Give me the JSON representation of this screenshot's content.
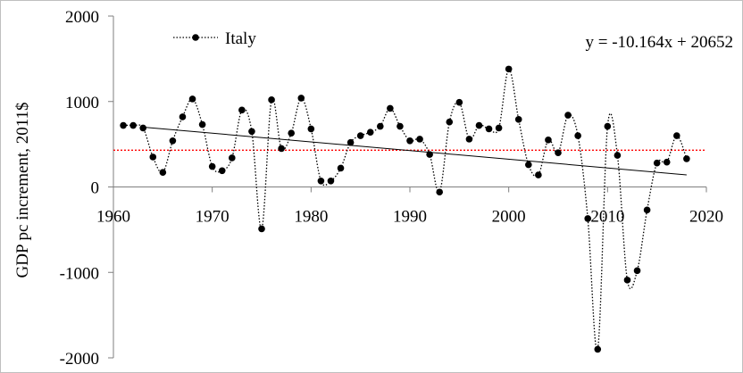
{
  "chart_data": {
    "type": "line",
    "ylabel": "GDP pc increment, 2011$",
    "xlim": [
      1960,
      2020
    ],
    "ylim": [
      -2000,
      2000
    ],
    "x_ticks": [
      1960,
      1970,
      1980,
      1990,
      2000,
      2010,
      2020
    ],
    "y_ticks": [
      2000,
      1000,
      0,
      -1000,
      -2000
    ],
    "legend_position": "top-left",
    "series": [
      {
        "name": "Italy",
        "style": "dotted line with filled circle markers",
        "color": "#000000",
        "x": [
          1961,
          1962,
          1963,
          1964,
          1965,
          1966,
          1967,
          1968,
          1969,
          1970,
          1971,
          1972,
          1973,
          1974,
          1975,
          1976,
          1977,
          1978,
          1979,
          1980,
          1981,
          1982,
          1983,
          1984,
          1985,
          1986,
          1987,
          1988,
          1989,
          1990,
          1991,
          1992,
          1993,
          1994,
          1995,
          1996,
          1997,
          1998,
          1999,
          2000,
          2001,
          2002,
          2003,
          2004,
          2005,
          2006,
          2007,
          2008,
          2009,
          2010,
          2011,
          2012,
          2013,
          2014,
          2015,
          2016,
          2017,
          2018
        ],
        "values": [
          720,
          720,
          690,
          350,
          170,
          540,
          820,
          1030,
          730,
          240,
          190,
          340,
          900,
          650,
          -490,
          1020,
          450,
          630,
          1040,
          680,
          70,
          70,
          220,
          520,
          600,
          640,
          710,
          920,
          710,
          540,
          560,
          380,
          -60,
          760,
          990,
          560,
          720,
          680,
          690,
          1380,
          790,
          260,
          140,
          550,
          400,
          840,
          600,
          -370,
          -1900,
          710,
          370,
          -1090,
          -980,
          -270,
          280,
          290,
          600,
          330
        ]
      }
    ],
    "trendline": {
      "equation_label": "y = -10.164x + 20652",
      "slope": -10.164,
      "intercept": 20652,
      "x_range": [
        1963,
        2018
      ],
      "color": "#000000"
    },
    "mean_line": {
      "value": 430,
      "style": "dotted",
      "color": "#ff0000"
    },
    "colors": {
      "axis": "#7f7f7f",
      "series": "#000000",
      "trendline": "#000000",
      "mean_line": "#ff0000"
    }
  }
}
